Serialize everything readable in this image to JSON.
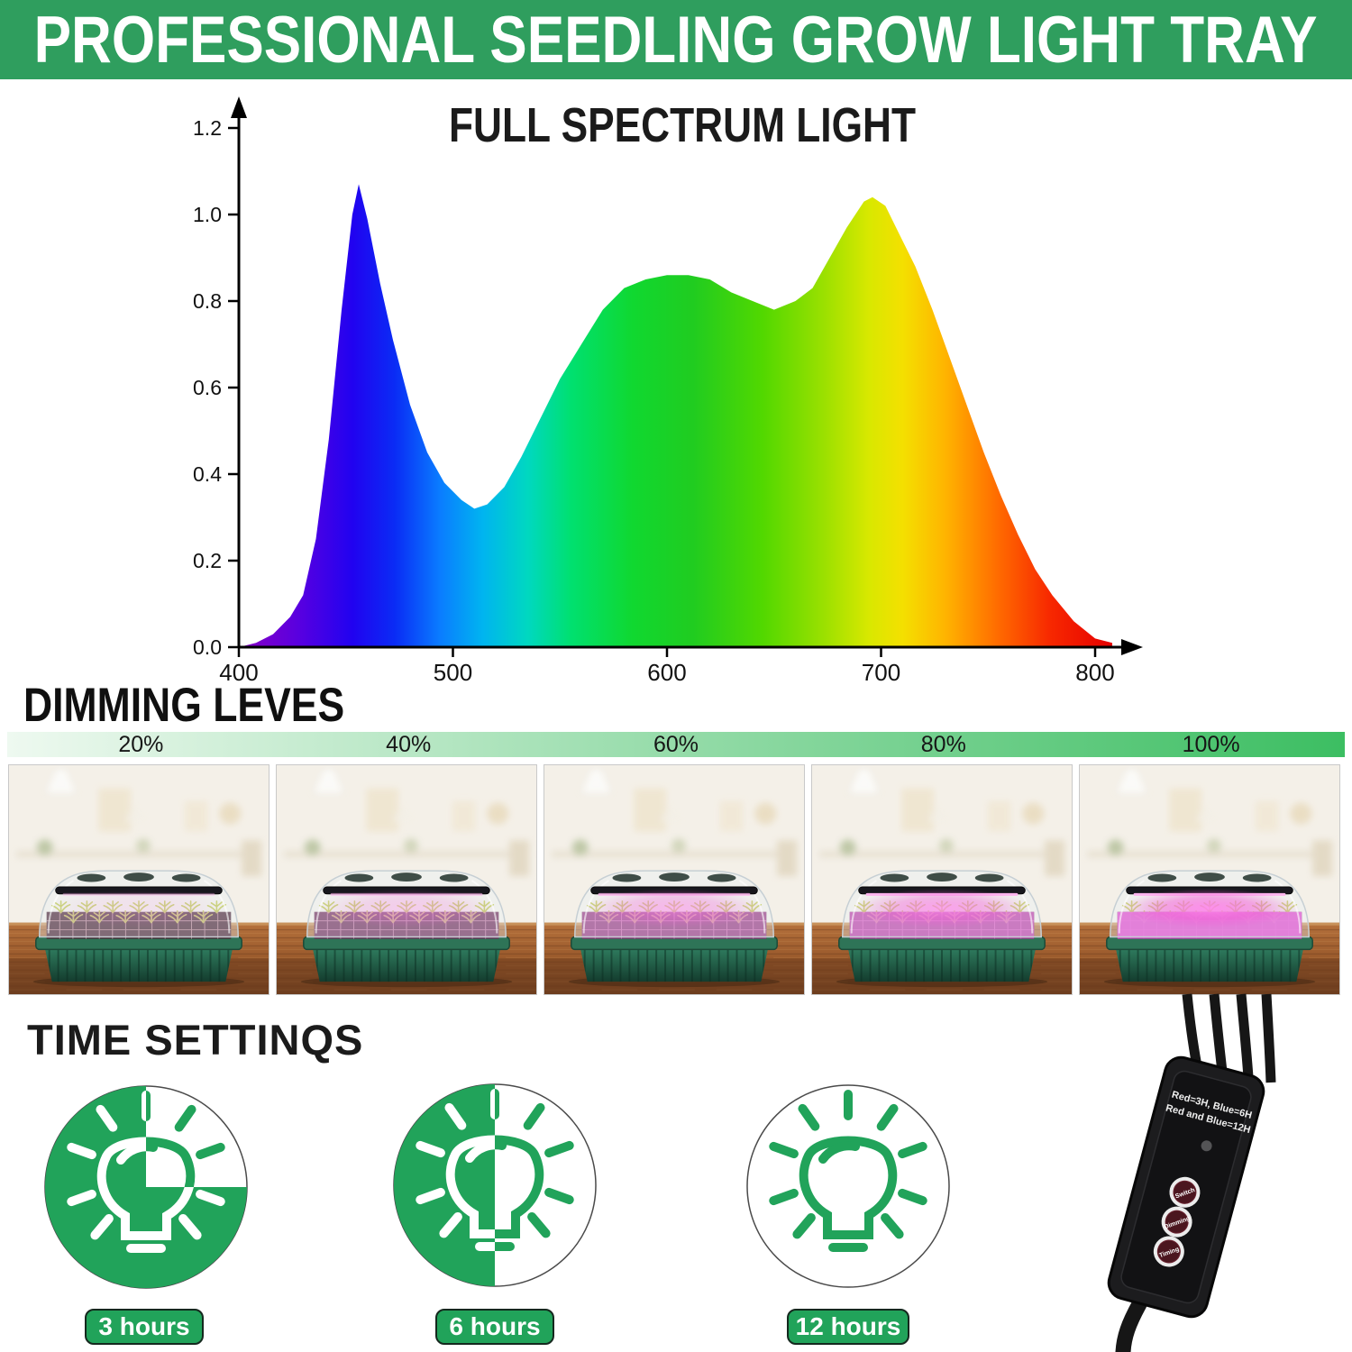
{
  "header": {
    "title": "PROFESSIONAL SEEDLING GROW LIGHT TRAY"
  },
  "chart_data": {
    "type": "area",
    "title": "FULL SPECTRUM LIGHT",
    "x_ticks": [
      400,
      500,
      600,
      700,
      800
    ],
    "y_ticks": [
      0,
      0.2,
      0.4,
      0.6,
      0.8,
      1,
      1.2
    ],
    "xlim": [
      400,
      815
    ],
    "ylim": [
      0,
      1.25
    ],
    "grid": "off",
    "fill": "rainbow spectrum gradient violet-to-red",
    "x": [
      400,
      408,
      416,
      424,
      430,
      436,
      442,
      448,
      453,
      456,
      460,
      466,
      472,
      480,
      488,
      496,
      504,
      510,
      516,
      524,
      532,
      540,
      550,
      560,
      570,
      580,
      590,
      600,
      610,
      620,
      630,
      640,
      650,
      660,
      668,
      676,
      684,
      692,
      696,
      702,
      708,
      716,
      724,
      732,
      740,
      748,
      756,
      764,
      772,
      780,
      790,
      800,
      808
    ],
    "y": [
      0,
      0.01,
      0.03,
      0.07,
      0.12,
      0.25,
      0.48,
      0.78,
      1,
      1.07,
      0.99,
      0.84,
      0.71,
      0.56,
      0.45,
      0.38,
      0.34,
      0.32,
      0.33,
      0.37,
      0.44,
      0.52,
      0.62,
      0.7,
      0.78,
      0.83,
      0.85,
      0.86,
      0.86,
      0.85,
      0.82,
      0.8,
      0.78,
      0.8,
      0.83,
      0.9,
      0.97,
      1.03,
      1.04,
      1.02,
      0.96,
      0.88,
      0.78,
      0.67,
      0.56,
      0.45,
      0.35,
      0.26,
      0.18,
      0.12,
      0.06,
      0.02,
      0.01
    ],
    "peaks": {
      "blue_peak": {
        "x": 456,
        "y": 1.07
      },
      "green_hump": {
        "x": 600,
        "y": 0.86
      },
      "yellow_peak": {
        "x": 696,
        "y": 1.04
      }
    }
  },
  "dimming": {
    "heading": "DIMMING LEVES",
    "levels": [
      {
        "label": "20%",
        "glow": 0.15
      },
      {
        "label": "40%",
        "glow": 0.35
      },
      {
        "label": "60%",
        "glow": 0.55
      },
      {
        "label": "80%",
        "glow": 0.75
      },
      {
        "label": "100%",
        "glow": 0.95
      }
    ]
  },
  "time_settings": {
    "heading": "TIME SETTINQS",
    "options": [
      {
        "label": "3 hours",
        "white_region": "top-right-quadrant"
      },
      {
        "label": "6 hours",
        "white_region": "right-half"
      },
      {
        "label": "12 hours",
        "white_region": "full"
      }
    ]
  },
  "controller": {
    "line1": "Red=3H, Blue=6H",
    "line2": "Red and Blue=12H",
    "buttons": [
      "Switch",
      "Dimming",
      "Timing"
    ]
  },
  "colors": {
    "header_green": "#2f9e5e",
    "accent_green": "#21a35a",
    "bar_light": "#eef9f0",
    "bar_dark": "#3cbe62",
    "glow_pink": "#e93fd4",
    "controller_body": "#1c1c1e",
    "button_face": "#4b161f"
  }
}
